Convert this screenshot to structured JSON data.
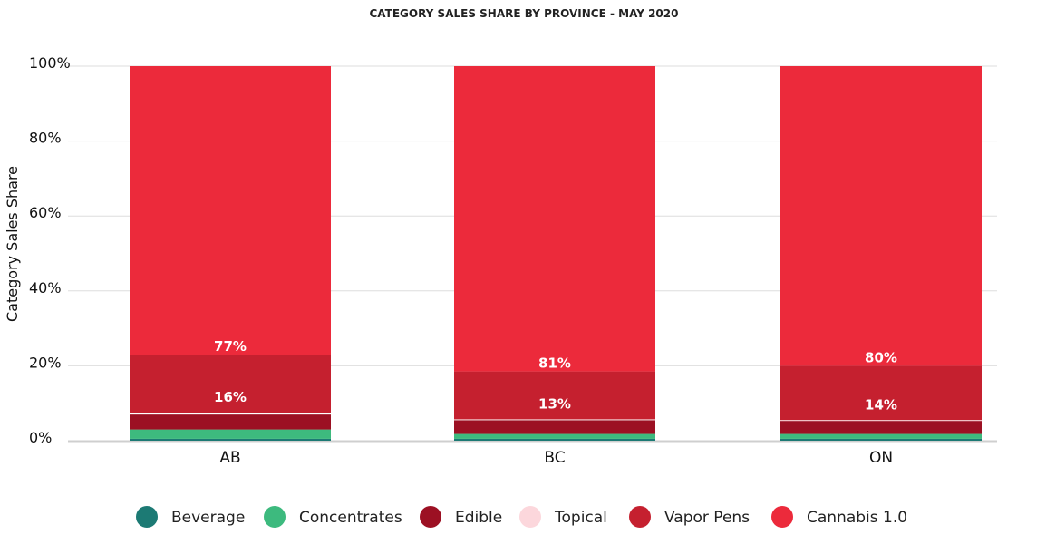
{
  "chart_data": {
    "type": "bar",
    "stacked": true,
    "title": "CATEGORY SALES SHARE BY PROVINCE - MAY 2020",
    "ylabel": "Category Sales Share",
    "xlabel": "",
    "ylim": [
      0,
      100
    ],
    "yticks": [
      "0%",
      "20%",
      "40%",
      "60%",
      "80%",
      "100%"
    ],
    "categories": [
      "AB",
      "BC",
      "ON"
    ],
    "series": [
      {
        "name": "Beverage",
        "color": "#1c7a74",
        "values": [
          0.5,
          0.5,
          0.5
        ]
      },
      {
        "name": "Concentrates",
        "color": "#3dba7e",
        "values": [
          2.5,
          1.3,
          1.3
        ]
      },
      {
        "name": "Edible",
        "color": "#9c1023",
        "values": [
          4.0,
          3.7,
          3.5
        ]
      },
      {
        "name": "Topical",
        "color": "#fcd7dc",
        "values": [
          0.5,
          0.2,
          0.2
        ]
      },
      {
        "name": "Vapor Pens",
        "color": "#c5202f",
        "values": [
          15.5,
          12.8,
          14.5
        ]
      },
      {
        "name": "Cannabis 1.0",
        "color": "#ec2a3b",
        "values": [
          77.0,
          81.5,
          80.0
        ]
      }
    ],
    "data_labels": [
      {
        "category": "AB",
        "series": "Cannabis 1.0",
        "text": "77%"
      },
      {
        "category": "AB",
        "series": "Vapor Pens",
        "text": "16%"
      },
      {
        "category": "BC",
        "series": "Cannabis 1.0",
        "text": "81%"
      },
      {
        "category": "BC",
        "series": "Vapor Pens",
        "text": "13%"
      },
      {
        "category": "ON",
        "series": "Cannabis 1.0",
        "text": "80%"
      },
      {
        "category": "ON",
        "series": "Vapor Pens",
        "text": "14%"
      }
    ],
    "legend": {
      "position": "bottom"
    },
    "grid": true
  }
}
